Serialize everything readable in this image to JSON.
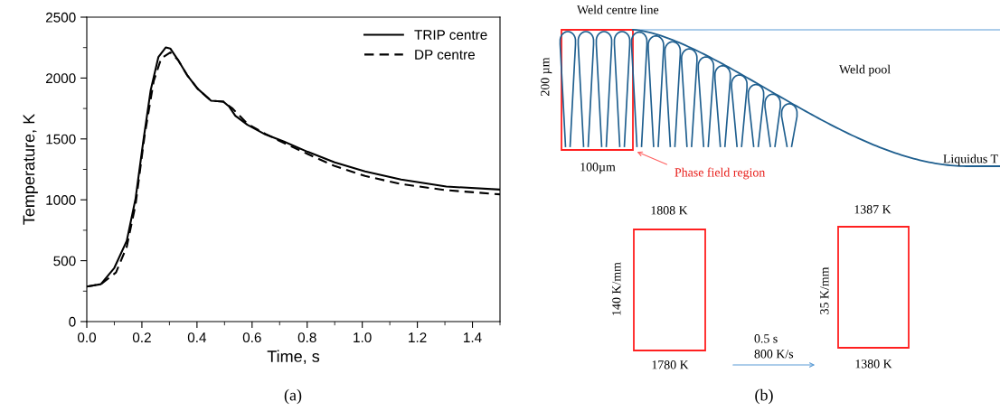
{
  "chart_data": [
    {
      "type": "line",
      "xlabel": "Time, s",
      "ylabel": "Temperature, K",
      "xlim": [
        0,
        1.5
      ],
      "ylim": [
        0,
        2500
      ],
      "xticks": [
        {
          "value": 0,
          "label": "0.0"
        },
        0.2,
        0.4,
        0.6,
        0.8,
        {
          "value": 1,
          "label": "1.0"
        },
        1.2,
        1.4
      ],
      "yticks": [
        0,
        500,
        1000,
        1500,
        2000,
        2500
      ],
      "legend": "top right",
      "grid": false,
      "annotations": [
        "(a)"
      ],
      "series": [
        {
          "name": "TRIP centre",
          "color": "#000000",
          "line_style": "solid",
          "x": [
            0,
            0.051,
            0.1,
            0.145,
            0.177,
            0.205,
            0.232,
            0.26,
            0.287,
            0.303,
            0.331,
            0.364,
            0.402,
            0.451,
            0.495,
            0.517,
            0.539,
            0.583,
            0.648,
            0.714,
            0.802,
            0.9,
            1.01,
            1.141,
            1.305,
            1.5
          ],
          "values": [
            287,
            307,
            441,
            663,
            1010,
            1480,
            1901,
            2173,
            2252,
            2243,
            2149,
            2025,
            1913,
            1814,
            1807,
            1765,
            1690,
            1616,
            1537,
            1480,
            1394,
            1307,
            1233,
            1166,
            1109,
            1084
          ]
        },
        {
          "name": "DP centre",
          "color": "#000000",
          "line_style": "dashed",
          "x": [
            0,
            0.051,
            0.106,
            0.145,
            0.177,
            0.21,
            0.243,
            0.27,
            0.303,
            0.331,
            0.364,
            0.402,
            0.451,
            0.495,
            0.528,
            0.583,
            0.648,
            0.714,
            0.802,
            0.9,
            1.01,
            1.141,
            1.305,
            1.5
          ],
          "values": [
            287,
            307,
            403,
            614,
            960,
            1530,
            1975,
            2161,
            2210,
            2149,
            2025,
            1913,
            1814,
            1807,
            1752,
            1624,
            1542,
            1468,
            1376,
            1277,
            1196,
            1129,
            1079,
            1045
          ]
        }
      ]
    },
    {
      "type": "other",
      "annotations": [
        "Weld centre line",
        "200 µm",
        "Weld pool",
        "100µm",
        "Phase field region",
        "Liquidus T",
        "1808 K",
        "140 K/mm",
        "1780 K",
        "0.5 s",
        "800 K/s",
        "1387 K",
        "35 K/mm",
        "1380 K",
        "(b)"
      ]
    }
  ]
}
